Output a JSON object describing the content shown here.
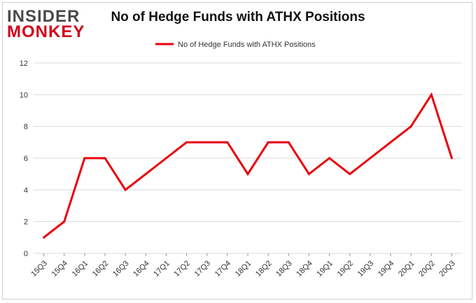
{
  "brand": {
    "line1": "INSIDER",
    "line2": "MONKEY"
  },
  "chart_data": {
    "type": "line",
    "title": "No of Hedge Funds with ATHX Positions",
    "xlabel": "",
    "ylabel": "",
    "categories": [
      "15Q3",
      "15Q4",
      "16Q1",
      "16Q2",
      "16Q3",
      "16Q4",
      "17Q1",
      "17Q2",
      "17Q3",
      "17Q4",
      "18Q1",
      "18Q2",
      "18Q3",
      "18Q4",
      "19Q1",
      "19Q2",
      "19Q3",
      "19Q4",
      "20Q1",
      "20Q2",
      "20Q3"
    ],
    "series": [
      {
        "name": "No of Hedge Funds with ATHX Positions",
        "values": [
          1,
          2,
          6,
          6,
          4,
          5,
          6,
          7,
          7,
          7,
          5,
          7,
          7,
          5,
          6,
          5,
          6,
          7,
          8,
          10,
          6
        ],
        "color": "#e8000b"
      }
    ],
    "ylim": [
      0,
      12
    ],
    "yticks": [
      0,
      2,
      4,
      6,
      8,
      10,
      12
    ],
    "grid": true,
    "legend_position": "top-center"
  }
}
